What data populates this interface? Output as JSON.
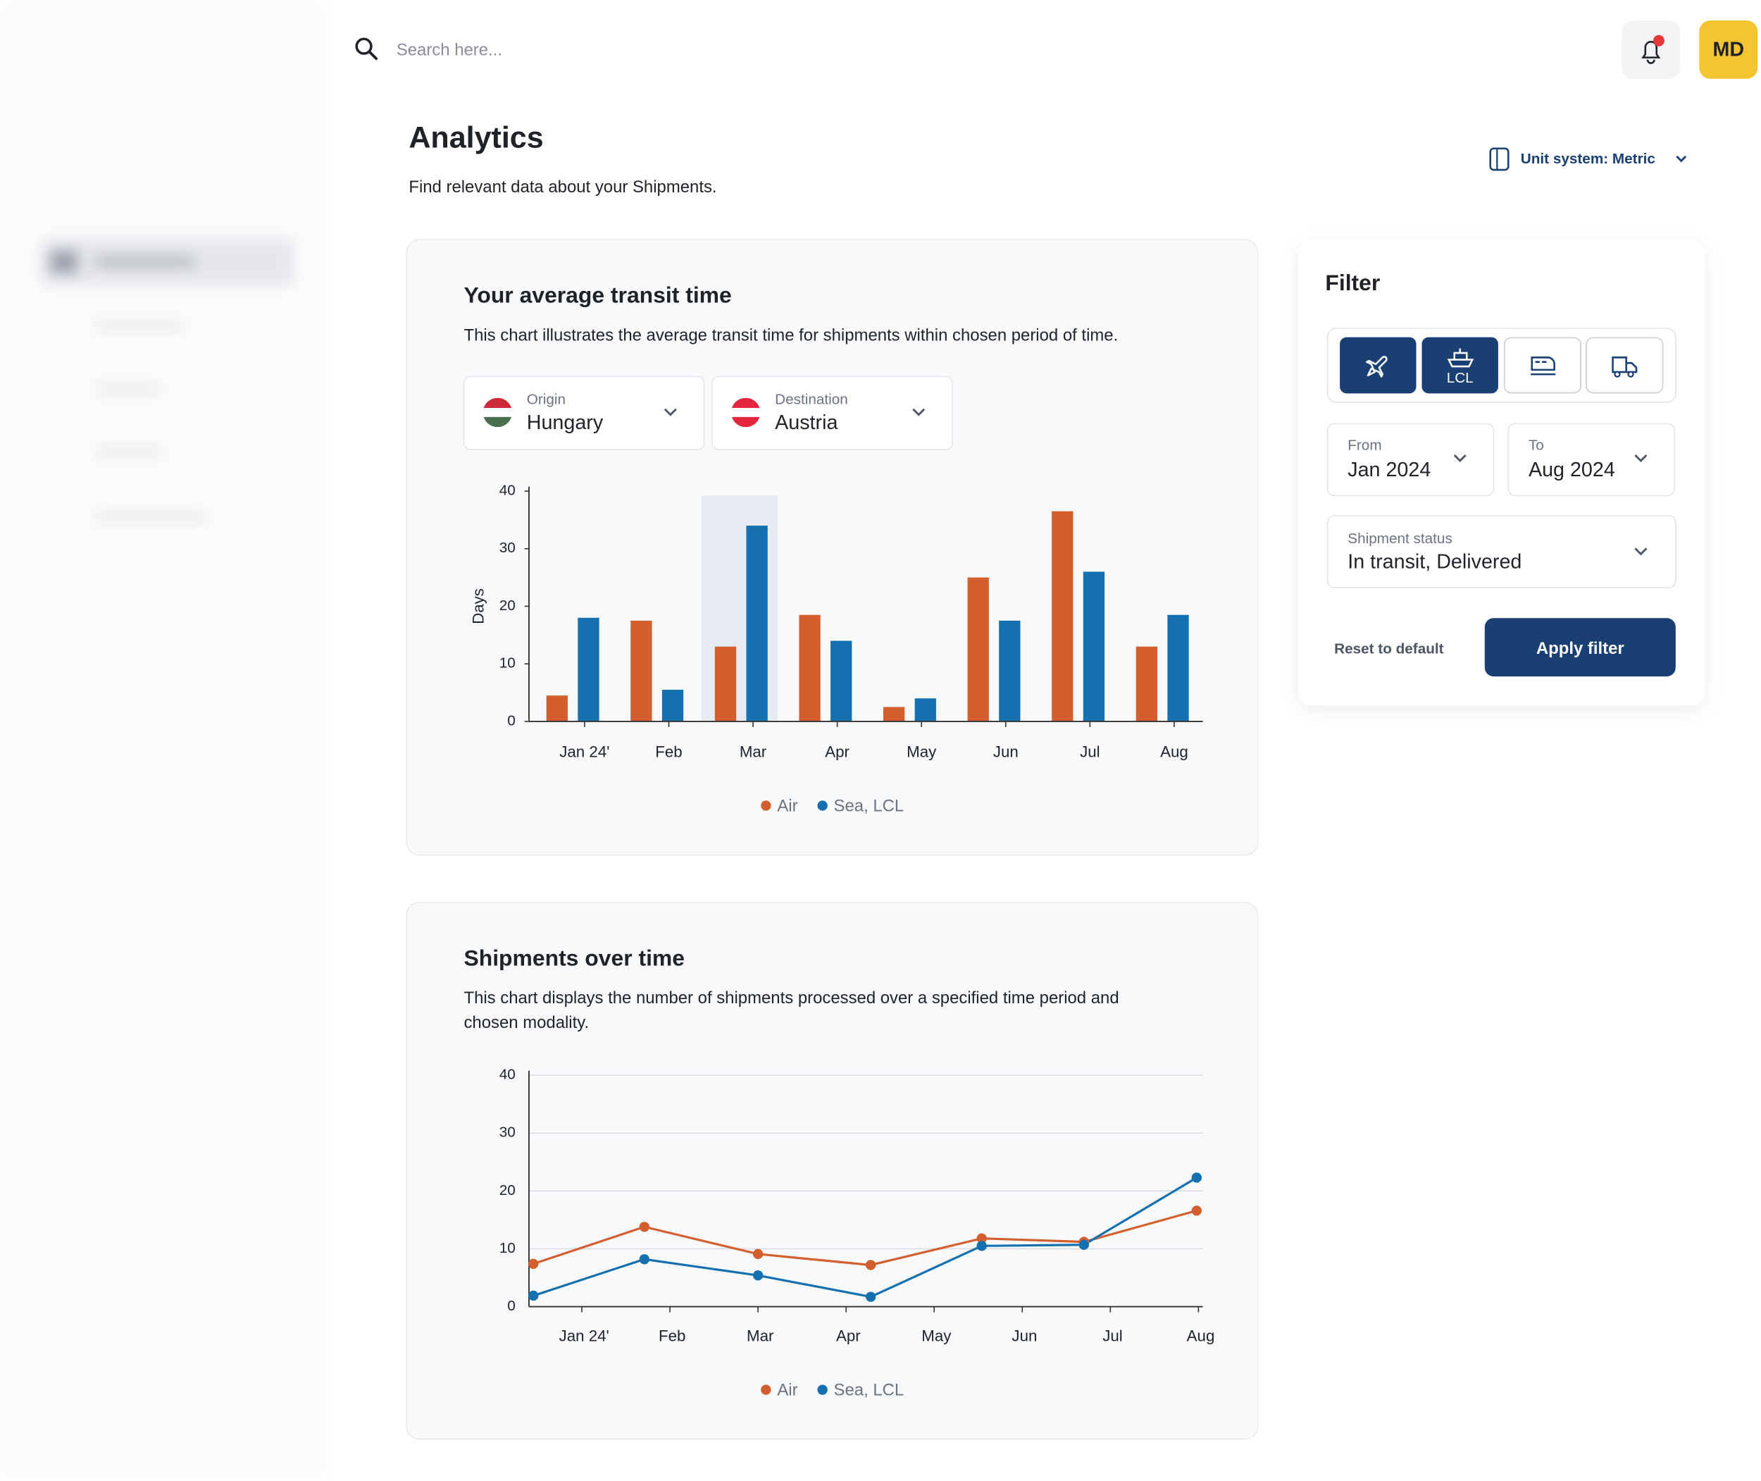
{
  "header": {
    "search_placeholder": "Search here...",
    "avatar": "MD"
  },
  "page": {
    "title": "Analytics",
    "subtitle": "Find relevant data about your Shipments.",
    "unit_system": "Unit system: Metric"
  },
  "filter": {
    "title": "Filter",
    "modes": {
      "lcl": "LCL"
    },
    "from": {
      "label": "From",
      "value": "Jan 2024"
    },
    "to": {
      "label": "To",
      "value": "Aug 2024"
    },
    "status": {
      "label": "Shipment status",
      "value": "In transit, Delivered"
    },
    "reset": "Reset to default",
    "apply": "Apply filter"
  },
  "chart_data": [
    {
      "type": "bar",
      "title": "Your average transit time",
      "description": [
        "This chart illustrates the average transit time for shipments within chosen period of time."
      ],
      "origin": {
        "label": "Origin",
        "value": "Hungary"
      },
      "destination": {
        "label": "Destination",
        "value": "Austria"
      },
      "ylabel": "Days",
      "categories": [
        "Jan 24'",
        "Feb",
        "Mar",
        "Apr",
        "May",
        "Jun",
        "Jul",
        "Aug"
      ],
      "series": [
        {
          "name": "Air",
          "color": "#d35f2f",
          "values": [
            4.5,
            17.5,
            13,
            18.5,
            2.5,
            25,
            36.5,
            13
          ]
        },
        {
          "name": "Sea, LCL",
          "color": "#1570b0",
          "values": [
            18,
            5.5,
            34,
            14,
            4,
            17.5,
            26,
            18.5
          ]
        }
      ],
      "highlighted_index": 2,
      "ylim": [
        0,
        40
      ],
      "yticks": [
        0,
        10,
        20,
        30,
        40
      ],
      "grid": false
    },
    {
      "type": "line",
      "title": "Shipments over time",
      "description": [
        "This chart displays the number of shipments processed over a specified time period and",
        "chosen modality."
      ],
      "x": [
        -0.55,
        0.71,
        2.0,
        3.28,
        4.54,
        5.7,
        6.98
      ],
      "series": [
        {
          "name": "Air",
          "color": "#d35f2f",
          "values": [
            7.4,
            13.8,
            9.1,
            7.2,
            11.8,
            11.2,
            16.6
          ]
        },
        {
          "name": "Sea, LCL",
          "color": "#1570b0",
          "values": [
            1.9,
            8.2,
            5.4,
            1.7,
            10.5,
            10.7,
            22.3
          ]
        }
      ],
      "xlim": [
        -0.6,
        7.05
      ],
      "xticks": [
        {
          "value": 0,
          "label": "Jan 24'"
        },
        {
          "value": 1,
          "label": "Feb"
        },
        {
          "value": 2,
          "label": "Mar"
        },
        {
          "value": 3,
          "label": "Apr"
        },
        {
          "value": 4,
          "label": "May"
        },
        {
          "value": 5,
          "label": "Jun"
        },
        {
          "value": 6,
          "label": "Jul"
        },
        {
          "value": 7,
          "label": "Aug"
        }
      ],
      "ylim": [
        0,
        40
      ],
      "yticks": [
        0,
        10,
        20,
        30,
        40
      ],
      "grid": true
    }
  ]
}
